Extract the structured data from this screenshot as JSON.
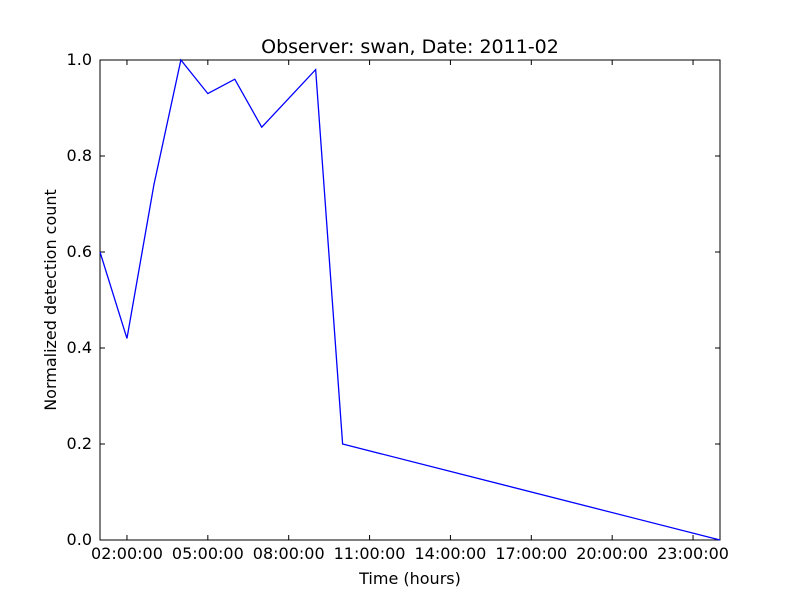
{
  "chart_data": {
    "type": "line",
    "title": "Observer: swan, Date: 2011-02",
    "xlabel": "Time (hours)",
    "ylabel": "Normalized detection count",
    "xlim": [
      "01:00:00",
      "24:00:00"
    ],
    "ylim": [
      0,
      1.0
    ],
    "grid": false,
    "legend": "none",
    "x_ticks": [
      "02:00:00",
      "05:00:00",
      "08:00:00",
      "11:00:00",
      "14:00:00",
      "17:00:00",
      "20:00:00",
      "23:00:00"
    ],
    "y_ticks": [
      "0.0",
      "0.2",
      "0.4",
      "0.6",
      "0.8",
      "1.0"
    ],
    "series": [
      {
        "color": "#0000ff",
        "x": [
          "01:00:00",
          "02:00:00",
          "03:00:00",
          "04:00:00",
          "05:00:00",
          "06:00:00",
          "07:00:00",
          "08:00:00",
          "09:00:00",
          "10:00:00",
          "24:00:00"
        ],
        "y": [
          0.6,
          0.42,
          0.74,
          1.0,
          0.93,
          0.96,
          0.86,
          0.92,
          0.98,
          0.2,
          0.0
        ]
      }
    ]
  }
}
